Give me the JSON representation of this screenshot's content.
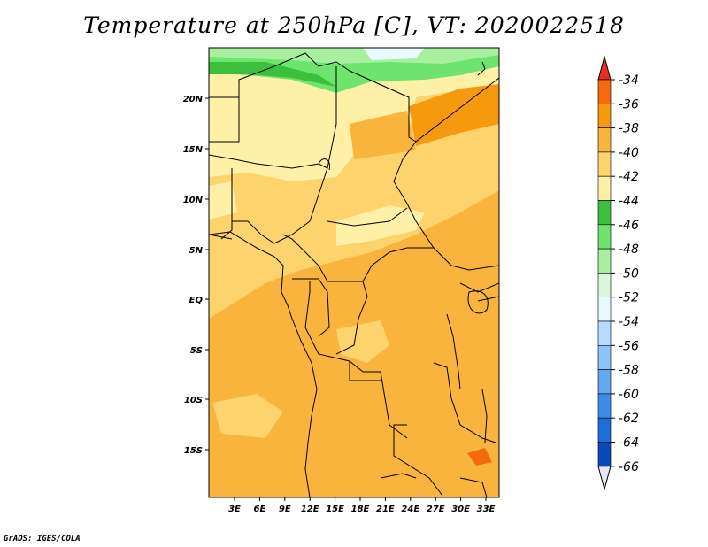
{
  "title": "Temperature at 250hPa [C], VT: 2020022518",
  "credit": "GrADS: IGES/COLA",
  "lat_labels": [
    "20N",
    "15N",
    "10N",
    "5N",
    "EQ",
    "5S",
    "10S",
    "15S"
  ],
  "lon_labels": [
    "3E",
    "6E",
    "9E",
    "12E",
    "15E",
    "18E",
    "21E",
    "24E",
    "27E",
    "30E",
    "33E"
  ],
  "colorbar": {
    "levels": [
      {
        "label": "-34",
        "color": "#f26b0f"
      },
      {
        "label": "-36",
        "color": "#f59a0f"
      },
      {
        "label": "-38",
        "color": "#f8b43d"
      },
      {
        "label": "-40",
        "color": "#fdd36e"
      },
      {
        "label": "-42",
        "color": "#fff0a8"
      },
      {
        "label": "-44",
        "color": "#3cbf3c"
      },
      {
        "label": "-46",
        "color": "#6ee36e"
      },
      {
        "label": "-48",
        "color": "#a8f0a0"
      },
      {
        "label": "-50",
        "color": "#dcf8dc"
      },
      {
        "label": "-52",
        "color": "#e8faff"
      },
      {
        "label": "-54",
        "color": "#b4dcff"
      },
      {
        "label": "-56",
        "color": "#8cc4f8"
      },
      {
        "label": "-58",
        "color": "#64a8f0"
      },
      {
        "label": "-60",
        "color": "#3c8ce8"
      },
      {
        "label": "-62",
        "color": "#1e6ed8"
      },
      {
        "label": "-64",
        "color": "#0a4ab8"
      },
      {
        "label": "-66",
        "color": "#0a1478"
      }
    ],
    "top_color": "#e8301e",
    "bottom_color": "#e6e6ff"
  }
}
